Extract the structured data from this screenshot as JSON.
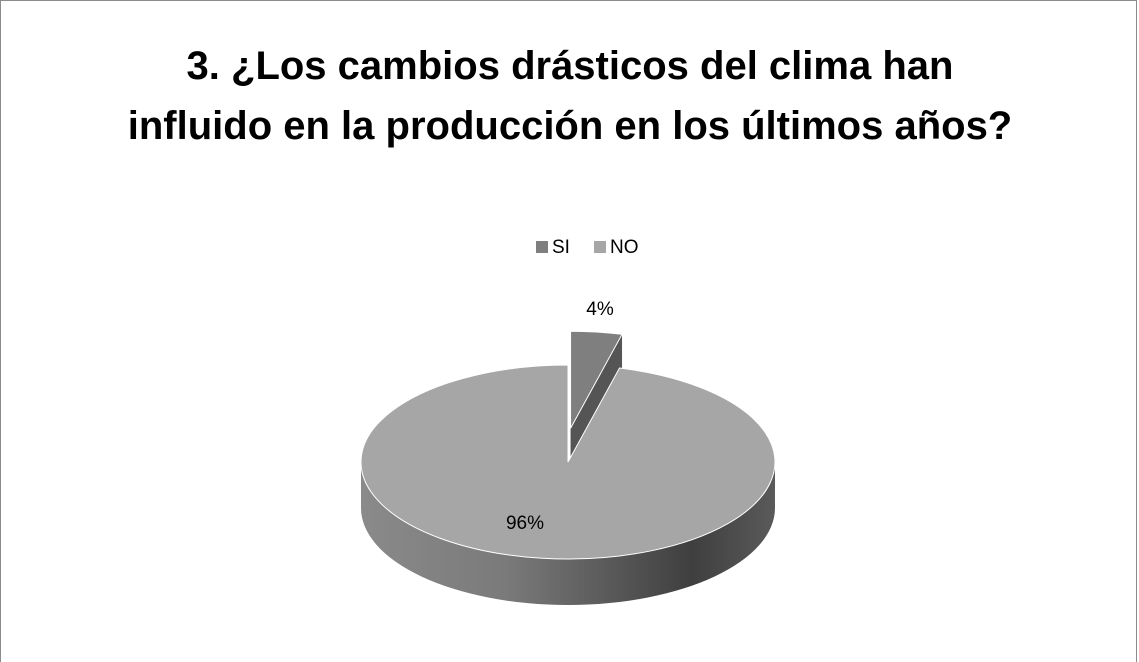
{
  "chart_data": {
    "type": "pie",
    "title": "3. ¿Los cambios drásticos del clima han influido en la producción en los últimos años?",
    "categories": [
      "SI",
      "NO"
    ],
    "values": [
      4,
      96
    ],
    "value_labels": [
      "4%",
      "96%"
    ],
    "colors": [
      "#7f7f7f",
      "#a6a6a6"
    ],
    "legend": "top"
  }
}
